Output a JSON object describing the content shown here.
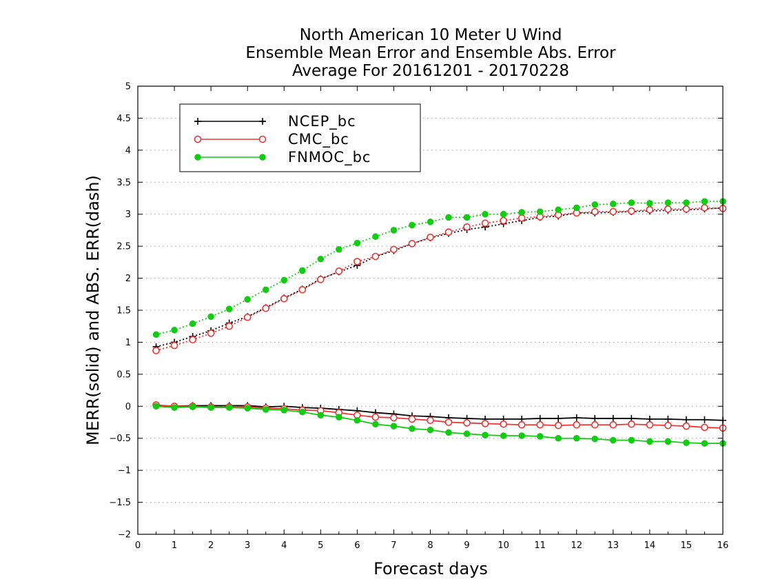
{
  "chart_data": {
    "type": "line",
    "title_lines": [
      "North American 10 Meter U Wind",
      "Ensemble Mean Error and Ensemble Abs. Error",
      "Average For 20161201 - 20170228"
    ],
    "xlabel": "Forecast days",
    "ylabel": "MERR(solid) and ABS. ERR(dash)",
    "xlim": [
      0,
      16
    ],
    "ylim": [
      -2,
      5
    ],
    "x_ticks": [
      0,
      1,
      2,
      3,
      4,
      5,
      6,
      7,
      8,
      9,
      10,
      11,
      12,
      13,
      14,
      15,
      16
    ],
    "x_tick_labels": [
      "0",
      "1",
      "2",
      "3",
      "4",
      "5",
      "6",
      "7",
      "8",
      "9",
      "10",
      "11",
      "12",
      "13",
      "14",
      "15",
      "16"
    ],
    "y_ticks": [
      -2,
      -1.5,
      -1,
      -0.5,
      0,
      0.5,
      1,
      1.5,
      2,
      2.5,
      3,
      3.5,
      4,
      4.5,
      5
    ],
    "y_tick_labels": [
      "−2",
      "−1.5",
      "−1",
      "−0.5",
      "0",
      "0.5",
      "1",
      "1.5",
      "2",
      "2.5",
      "3",
      "3.5",
      "4",
      "4.5",
      "5"
    ],
    "grid": "horizontal dotted",
    "legend_position": "top-left",
    "x": [
      0.5,
      1,
      1.5,
      2,
      2.5,
      3,
      3.5,
      4,
      4.5,
      5,
      5.5,
      6,
      6.5,
      7,
      7.5,
      8,
      8.5,
      9,
      9.5,
      10,
      10.5,
      11,
      11.5,
      12,
      12.5,
      13,
      13.5,
      14,
      14.5,
      15,
      15.5,
      16
    ],
    "series": [
      {
        "name": "NCEP_bc",
        "color": "#000000",
        "marker": "plus",
        "abs_err": [
          0.93,
          1.0,
          1.09,
          1.18,
          1.3,
          1.4,
          1.54,
          1.69,
          1.83,
          1.99,
          2.1,
          2.2,
          2.34,
          2.43,
          2.54,
          2.63,
          2.7,
          2.76,
          2.8,
          2.85,
          2.9,
          2.95,
          2.97,
          3.02,
          3.02,
          3.03,
          3.04,
          3.05,
          3.06,
          3.07,
          3.08,
          3.1
        ],
        "mean_err": [
          0.01,
          0.0,
          0.01,
          0.01,
          0.01,
          0.01,
          -0.01,
          0.0,
          -0.02,
          -0.03,
          -0.05,
          -0.07,
          -0.1,
          -0.12,
          -0.15,
          -0.16,
          -0.18,
          -0.19,
          -0.2,
          -0.2,
          -0.2,
          -0.19,
          -0.19,
          -0.18,
          -0.19,
          -0.19,
          -0.19,
          -0.2,
          -0.2,
          -0.21,
          -0.21,
          -0.22
        ]
      },
      {
        "name": "CMC_bc",
        "color": "#ee3333",
        "marker": "open-circle",
        "abs_err": [
          0.87,
          0.95,
          1.04,
          1.14,
          1.25,
          1.39,
          1.53,
          1.68,
          1.82,
          1.98,
          2.11,
          2.26,
          2.34,
          2.45,
          2.54,
          2.64,
          2.72,
          2.8,
          2.86,
          2.9,
          2.94,
          2.96,
          2.99,
          3.02,
          3.04,
          3.04,
          3.05,
          3.07,
          3.08,
          3.08,
          3.1,
          3.09
        ],
        "mean_err": [
          0.02,
          0.0,
          0.0,
          -0.01,
          -0.01,
          -0.01,
          -0.03,
          -0.04,
          -0.06,
          -0.07,
          -0.1,
          -0.14,
          -0.17,
          -0.18,
          -0.2,
          -0.22,
          -0.25,
          -0.26,
          -0.27,
          -0.28,
          -0.29,
          -0.29,
          -0.3,
          -0.29,
          -0.29,
          -0.29,
          -0.28,
          -0.29,
          -0.3,
          -0.31,
          -0.33,
          -0.34
        ]
      },
      {
        "name": "FNMOC_bc",
        "color": "#11cc11",
        "marker": "filled-circle",
        "abs_err": [
          1.12,
          1.19,
          1.29,
          1.4,
          1.52,
          1.67,
          1.82,
          1.97,
          2.12,
          2.3,
          2.45,
          2.55,
          2.65,
          2.75,
          2.83,
          2.88,
          2.95,
          2.95,
          3.0,
          3.0,
          3.03,
          3.04,
          3.07,
          3.1,
          3.15,
          3.16,
          3.18,
          3.17,
          3.18,
          3.18,
          3.2,
          3.2
        ],
        "mean_err": [
          0.0,
          -0.02,
          -0.01,
          -0.02,
          -0.02,
          -0.03,
          -0.05,
          -0.06,
          -0.09,
          -0.14,
          -0.17,
          -0.22,
          -0.28,
          -0.31,
          -0.35,
          -0.37,
          -0.41,
          -0.43,
          -0.45,
          -0.46,
          -0.46,
          -0.47,
          -0.5,
          -0.5,
          -0.51,
          -0.53,
          -0.53,
          -0.55,
          -0.55,
          -0.57,
          -0.58,
          -0.58
        ]
      }
    ]
  }
}
